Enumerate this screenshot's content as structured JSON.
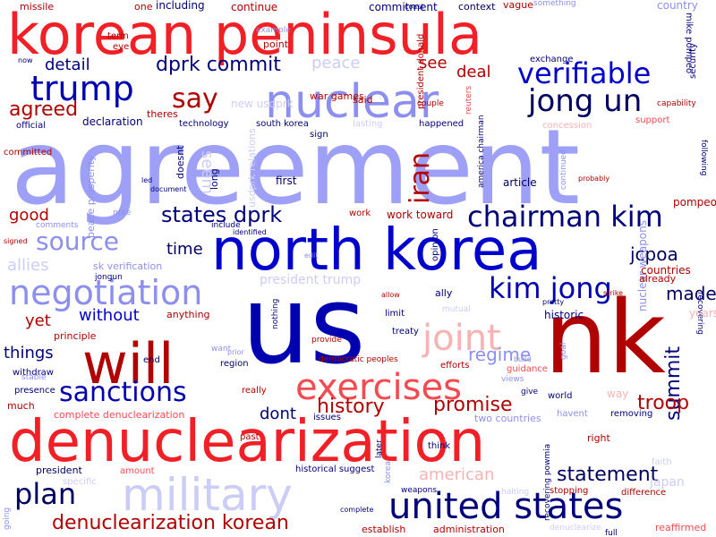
{
  "words": [
    {
      "text": "agreement",
      "color": "#9da0f6"
    },
    {
      "text": "us",
      "color": "#0000b0"
    },
    {
      "text": "nk",
      "color": "#b00000"
    },
    {
      "text": "korean peninsula",
      "color": "#f11f26"
    },
    {
      "text": "denuclearization",
      "color": "#f11f26"
    },
    {
      "text": "north korea",
      "color": "#0000cd"
    },
    {
      "text": "nuclear",
      "color": "#8c8ff0"
    },
    {
      "text": "military",
      "color": "#cbcdf7"
    },
    {
      "text": "will",
      "color": "#b00000"
    },
    {
      "text": "united states",
      "color": "#00007a"
    },
    {
      "text": "exercises",
      "color": "#f44a50"
    },
    {
      "text": "negotiation",
      "color": "#8c8ff0"
    },
    {
      "text": "trump",
      "color": "#0000b0"
    },
    {
      "text": "joint",
      "color": "#f7b2b4"
    },
    {
      "text": "verifiable",
      "color": "#0000cd"
    },
    {
      "text": "chairman kim",
      "color": "#00007a"
    },
    {
      "text": "jong un",
      "color": "#000060"
    },
    {
      "text": "kim jong",
      "color": "#0000b0"
    },
    {
      "text": "sanctions",
      "color": "#0000b0"
    },
    {
      "text": "plan",
      "color": "#000060"
    },
    {
      "text": "iran",
      "color": "#b00000"
    },
    {
      "text": "say",
      "color": "#b00000"
    },
    {
      "text": "source",
      "color": "#8c8ff0"
    },
    {
      "text": "states dprk",
      "color": "#00007a"
    },
    {
      "text": "denuclearization korean",
      "color": "#b00000"
    },
    {
      "text": "dprk commit",
      "color": "#00007a"
    },
    {
      "text": "history",
      "color": "#b00000"
    },
    {
      "text": "promise",
      "color": "#b00000"
    },
    {
      "text": "statement",
      "color": "#000060"
    },
    {
      "text": "summit",
      "color": "#00007a"
    },
    {
      "text": "troop",
      "color": "#b00000"
    },
    {
      "text": "agreed",
      "color": "#b00000"
    },
    {
      "text": "jcpoa",
      "color": "#000060"
    },
    {
      "text": "made",
      "color": "#000060"
    },
    {
      "text": "regime",
      "color": "#8c8ff0"
    },
    {
      "text": "allies",
      "color": "#cbcdf7"
    },
    {
      "text": "detail",
      "color": "#00007a"
    },
    {
      "text": "peace",
      "color": "#cbcdf7"
    },
    {
      "text": "see",
      "color": "#b00000"
    },
    {
      "text": "deal",
      "color": "#b00000"
    },
    {
      "text": "good",
      "color": "#b00000"
    },
    {
      "text": "time",
      "color": "#000060"
    },
    {
      "text": "things",
      "color": "#00007a"
    },
    {
      "text": "without",
      "color": "#0000cd"
    },
    {
      "text": "yet",
      "color": "#b00000"
    },
    {
      "text": "dont",
      "color": "#00007a"
    },
    {
      "text": "american",
      "color": "#f7b2b4"
    },
    {
      "text": "seem",
      "color": "#cbcdf7"
    },
    {
      "text": "president trump",
      "color": "#cbcdf7"
    },
    {
      "text": "historic",
      "color": "#00007a"
    },
    {
      "text": "missile",
      "color": "#b00000"
    },
    {
      "text": "including",
      "color": "#00007a"
    },
    {
      "text": "continue",
      "color": "#b00000"
    },
    {
      "text": "commitment",
      "color": "#00007a"
    },
    {
      "text": "context",
      "color": "#000060"
    },
    {
      "text": "vague",
      "color": "#b00000"
    },
    {
      "text": "country",
      "color": "#8c8ff0"
    },
    {
      "text": "mike pompeo",
      "color": "#00007a"
    },
    {
      "text": "security",
      "color": "#00007a"
    },
    {
      "text": "exchange",
      "color": "#00007a"
    },
    {
      "text": "capability",
      "color": "#b00000"
    },
    {
      "text": "point",
      "color": "#b00000"
    },
    {
      "text": "president donald",
      "color": "#b00000"
    },
    {
      "text": "war games",
      "color": "#b00000"
    },
    {
      "text": "said",
      "color": "#b00000"
    },
    {
      "text": "declaration",
      "color": "#00007a"
    },
    {
      "text": "theres",
      "color": "#b00000"
    },
    {
      "text": "technology",
      "color": "#00007a"
    },
    {
      "text": "south korea",
      "color": "#00007a"
    },
    {
      "text": "lasting",
      "color": "#cbcdf7"
    },
    {
      "text": "happened",
      "color": "#00007a"
    },
    {
      "text": "america chairman",
      "color": "#00007a"
    },
    {
      "text": "official",
      "color": "#00007a"
    },
    {
      "text": "committed",
      "color": "#b00000"
    },
    {
      "text": "new usdprk",
      "color": "#cbcdf7"
    },
    {
      "text": "usdprk relations",
      "color": "#cbcdf7"
    },
    {
      "text": "doesnt",
      "color": "#00007a"
    },
    {
      "text": "long",
      "color": "#00007a"
    },
    {
      "text": "first",
      "color": "#000060"
    },
    {
      "text": "article",
      "color": "#000060"
    },
    {
      "text": "pompeo",
      "color": "#b00000"
    },
    {
      "text": "support",
      "color": "#f44a50"
    },
    {
      "text": "concession",
      "color": "#f7b2b4"
    },
    {
      "text": "nuclear weapons",
      "color": "#8c8ff0"
    },
    {
      "text": "peace prosperity",
      "color": "#8c8ff0"
    },
    {
      "text": "work toward",
      "color": "#b00000"
    },
    {
      "text": "work",
      "color": "#b00000"
    },
    {
      "text": "opinion",
      "color": "#00007a"
    },
    {
      "text": "countries",
      "color": "#b00000"
    },
    {
      "text": "already",
      "color": "#b00000"
    },
    {
      "text": "sk verification",
      "color": "#8c8ff0"
    },
    {
      "text": "anything",
      "color": "#b00000"
    },
    {
      "text": "principle",
      "color": "#b00000"
    },
    {
      "text": "withdraw",
      "color": "#00007a"
    },
    {
      "text": "end",
      "color": "#000060"
    },
    {
      "text": "region",
      "color": "#000060"
    },
    {
      "text": "limit",
      "color": "#00007a"
    },
    {
      "text": "treaty",
      "color": "#00007a"
    },
    {
      "text": "ally",
      "color": "#00007a"
    },
    {
      "text": "mutual",
      "color": "#cbcdf7"
    },
    {
      "text": "provide",
      "color": "#b00000"
    },
    {
      "text": "efforts",
      "color": "#b00000"
    },
    {
      "text": "really",
      "color": "#b00000"
    },
    {
      "text": "stable",
      "color": "#8c8ff0"
    },
    {
      "text": "presence",
      "color": "#00007a"
    },
    {
      "text": "much",
      "color": "#b00000"
    },
    {
      "text": "complete denuclearization",
      "color": "#f44a50"
    },
    {
      "text": "issues",
      "color": "#00007a"
    },
    {
      "text": "two countries",
      "color": "#8c8ff0"
    },
    {
      "text": "world",
      "color": "#00007a"
    },
    {
      "text": "havent",
      "color": "#8c8ff0"
    },
    {
      "text": "removing",
      "color": "#00007a"
    },
    {
      "text": "past",
      "color": "#b00000"
    },
    {
      "text": "right",
      "color": "#b00000"
    },
    {
      "text": "think",
      "color": "#00007a"
    },
    {
      "text": "president",
      "color": "#000060"
    },
    {
      "text": "amount",
      "color": "#f44a50"
    },
    {
      "text": "historical suggest",
      "color": "#00007a"
    },
    {
      "text": "weapons",
      "color": "#00007a"
    },
    {
      "text": "japan",
      "color": "#cbcdf7"
    },
    {
      "text": "difference",
      "color": "#b00000"
    },
    {
      "text": "stopping",
      "color": "#b00000"
    },
    {
      "text": "establish",
      "color": "#b00000"
    },
    {
      "text": "administration",
      "color": "#b00000"
    },
    {
      "text": "reaffirmed",
      "color": "#f44a50"
    },
    {
      "text": "denuclearize",
      "color": "#cbcdf7"
    },
    {
      "text": "specific",
      "color": "#cbcdf7"
    },
    {
      "text": "going",
      "color": "#8c8ff0"
    },
    {
      "text": "complete",
      "color": "#00007a"
    },
    {
      "text": "one",
      "color": "#b00000"
    },
    {
      "text": "term",
      "color": "#b00000"
    },
    {
      "text": "eye",
      "color": "#b00000"
    },
    {
      "text": "example",
      "color": "#8c8ff0"
    },
    {
      "text": "coast",
      "color": "#00007a"
    },
    {
      "text": "something",
      "color": "#8c8ff0"
    },
    {
      "text": "now",
      "color": "#00007a"
    },
    {
      "text": "couple",
      "color": "#b00000"
    },
    {
      "text": "sign",
      "color": "#00007a"
    },
    {
      "text": "reuters",
      "color": "#f44a50"
    },
    {
      "text": "continued",
      "color": "#8c8ff0"
    },
    {
      "text": "probably",
      "color": "#b00000"
    },
    {
      "text": "following",
      "color": "#00007a"
    },
    {
      "text": "document",
      "color": "#00007a"
    },
    {
      "text": "led",
      "color": "#00007a"
    },
    {
      "text": "note",
      "color": "#8c8ff0"
    },
    {
      "text": "include",
      "color": "#00007a"
    },
    {
      "text": "identified",
      "color": "#00007a"
    },
    {
      "text": "comments",
      "color": "#8c8ff0"
    },
    {
      "text": "signed",
      "color": "#b00000"
    },
    {
      "text": "jongun",
      "color": "#00007a"
    },
    {
      "text": "edit",
      "color": "#8c8ff0"
    },
    {
      "text": "want",
      "color": "#8c8ff0"
    },
    {
      "text": "prior",
      "color": "#8c8ff0"
    },
    {
      "text": "democratic peoples",
      "color": "#b00000"
    },
    {
      "text": "build",
      "color": "#8c8ff0"
    },
    {
      "text": "views",
      "color": "#8c8ff0"
    },
    {
      "text": "give",
      "color": "#00007a"
    },
    {
      "text": "guidance",
      "color": "#f44a50"
    },
    {
      "text": "recovering",
      "color": "#00007a"
    },
    {
      "text": "pretty",
      "color": "#00007a"
    },
    {
      "text": "strike",
      "color": "#b00000"
    },
    {
      "text": "years",
      "color": "#f7b2b4"
    },
    {
      "text": "goal",
      "color": "#8c8ff0"
    },
    {
      "text": "way",
      "color": "#f7b2b4"
    },
    {
      "text": "faith",
      "color": "#cbcdf7"
    },
    {
      "text": "halting",
      "color": "#cbcdf7"
    },
    {
      "text": "recovering powmia",
      "color": "#00007a"
    },
    {
      "text": "allow",
      "color": "#b00000"
    },
    {
      "text": "later",
      "color": "#00007a"
    },
    {
      "text": "korea",
      "color": "#8c8ff0"
    },
    {
      "text": "nothing",
      "color": "#00007a"
    },
    {
      "text": "full",
      "color": "#00007a"
    }
  ]
}
